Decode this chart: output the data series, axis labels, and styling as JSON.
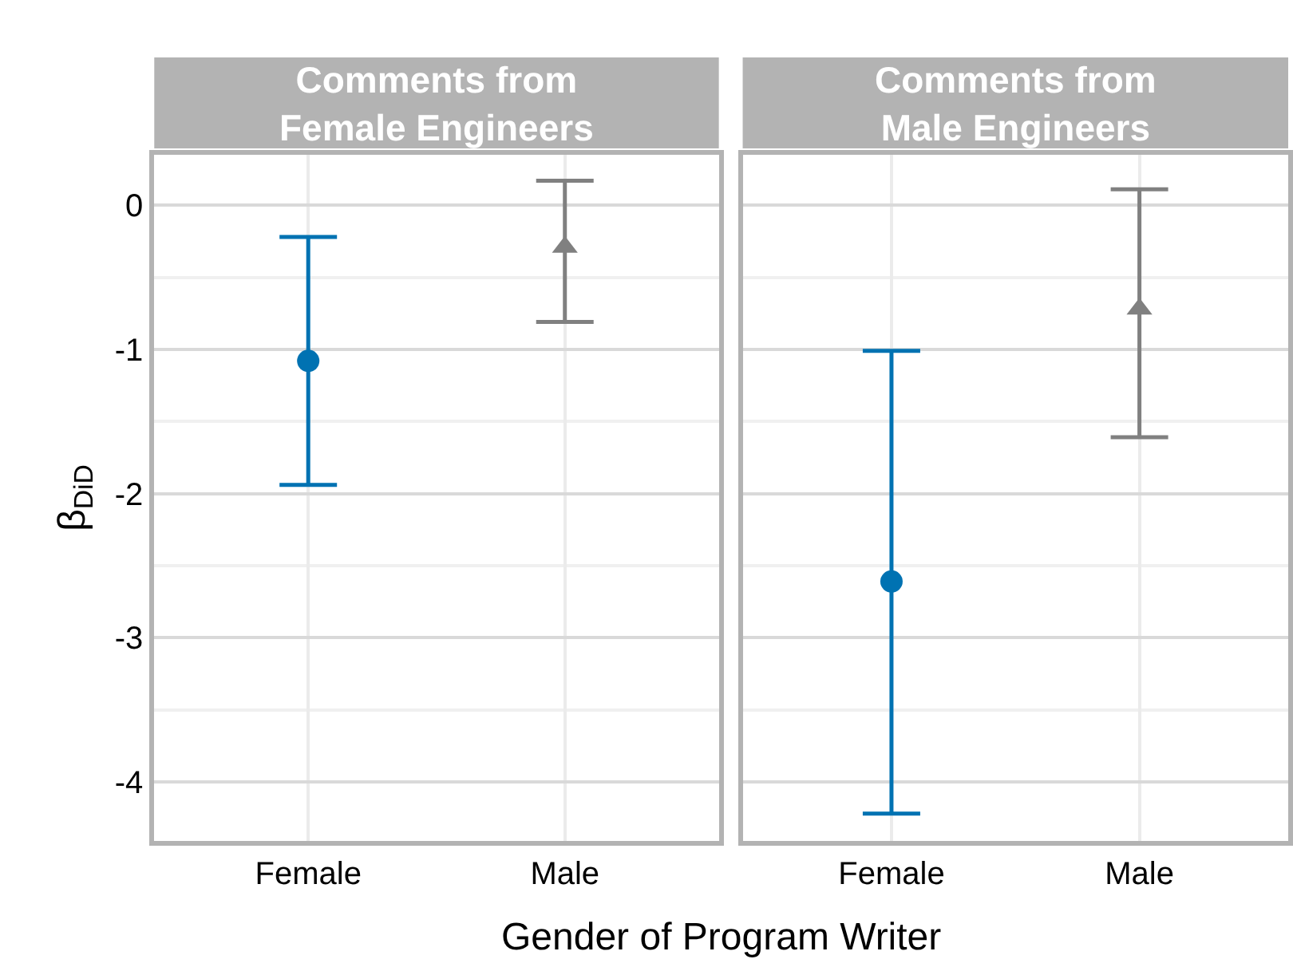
{
  "chart_data": [
    {
      "type": "scatter",
      "title": "Comments from\nFemale Engineers",
      "xlabel": "Gender of Program Writer",
      "ylabel": "β$_{DiD}$",
      "categories": [
        "Female",
        "Male"
      ],
      "ylim": [
        -4.41,
        0.35
      ],
      "yticks": [
        0,
        -1,
        -2,
        -3,
        -4
      ],
      "grid": true,
      "series": [
        {
          "color": "#0072b2",
          "marker": "circle",
          "values": [
            -1.08,
            null
          ],
          "errors": [
            [
              -1.94,
              -0.22
            ],
            null
          ]
        },
        {
          "color": "#808080",
          "marker": "triangle",
          "values": [
            null,
            -0.29
          ],
          "errors": [
            null,
            [
              -0.81,
              0.17
            ]
          ]
        }
      ]
    },
    {
      "type": "scatter",
      "title": "Comments from\nMale Engineers",
      "categories": [
        "Female",
        "Male"
      ],
      "ylim": [
        -4.41,
        0.35
      ],
      "yticks": [
        0,
        -1,
        -2,
        -3,
        -4
      ],
      "grid": true,
      "tick_labels": "x",
      "series": [
        {
          "color": "#0072b2",
          "marker": "circle",
          "values": [
            -2.61,
            null
          ],
          "errors": [
            [
              -4.22,
              -1.01
            ],
            null
          ]
        },
        {
          "color": "#808080",
          "marker": "triangle",
          "values": [
            null,
            -0.72
          ],
          "errors": [
            null,
            [
              -1.61,
              0.11
            ]
          ]
        }
      ]
    }
  ]
}
